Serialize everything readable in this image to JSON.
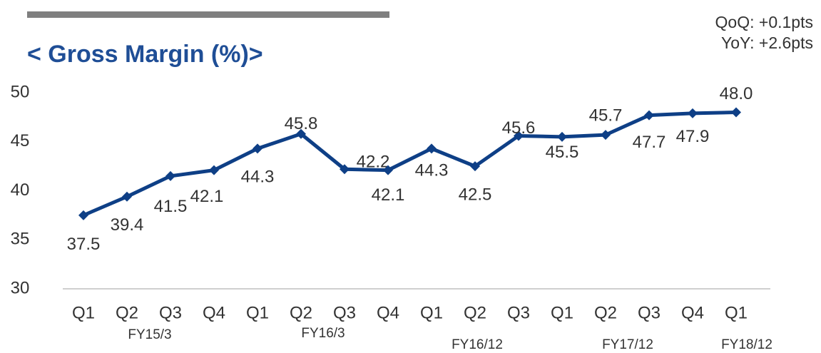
{
  "chart_data": {
    "type": "line",
    "title": "< Gross Margin (%)>",
    "annotations": [
      "QoQ: +0.1pts",
      "YoY: +2.6pts"
    ],
    "categories": [
      "Q1",
      "Q2",
      "Q3",
      "Q4",
      "Q1",
      "Q2",
      "Q3",
      "Q4",
      "Q1",
      "Q2",
      "Q3",
      "Q1",
      "Q2",
      "Q3",
      "Q4",
      "Q1"
    ],
    "groups": [
      "FY15/3",
      "FY16/3",
      "FY16/12",
      "FY17/12",
      "FY18/12"
    ],
    "series": [
      {
        "name": "Gross Margin",
        "color": "#0e3f86",
        "values": [
          37.5,
          39.4,
          41.5,
          42.1,
          44.3,
          45.8,
          42.2,
          42.1,
          44.3,
          42.5,
          45.6,
          45.5,
          45.7,
          47.7,
          47.9,
          48.0
        ],
        "value_labels": [
          "37.5",
          "39.4",
          "41.5",
          "42.1",
          "44.3",
          "45.8",
          "42.2",
          "42.1",
          "44.3",
          "42.5",
          "45.6",
          "45.5",
          "45.7",
          "47.7",
          "47.9",
          "48.0"
        ]
      }
    ],
    "ylim": [
      30,
      50
    ],
    "yticks": [
      30,
      35,
      40,
      45,
      50
    ],
    "grid": false
  }
}
